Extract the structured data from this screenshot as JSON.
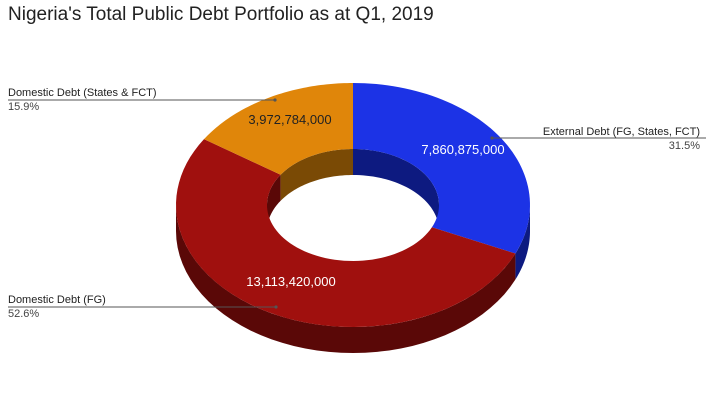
{
  "chart_data": {
    "type": "pie",
    "style": "donut-3d",
    "title": "Nigeria's Total Public Debt Portfolio as at Q1, 2019",
    "slices": [
      {
        "name": "External Debt (FG, States, FCT)",
        "value": 7860875000,
        "value_label": "7,860,875,000",
        "percent_label": "31.5%",
        "color": "#1c33e6",
        "side_color": "#0d1a80",
        "label_color": "#ffffff"
      },
      {
        "name": "Domestic Debt (FG)",
        "value": 13113420000,
        "value_label": "13,113,420,000",
        "percent_label": "52.6%",
        "color": "#a0100e",
        "side_color": "#5a0807",
        "label_color": "#ffffff"
      },
      {
        "name": "Domestic Debt (States & FCT)",
        "value": 3972784000,
        "value_label": "3,972,784,000",
        "percent_label": "15.9%",
        "color": "#e0860a",
        "side_color": "#7a4a05",
        "label_color": "#222222"
      }
    ],
    "legend": "callouts"
  }
}
